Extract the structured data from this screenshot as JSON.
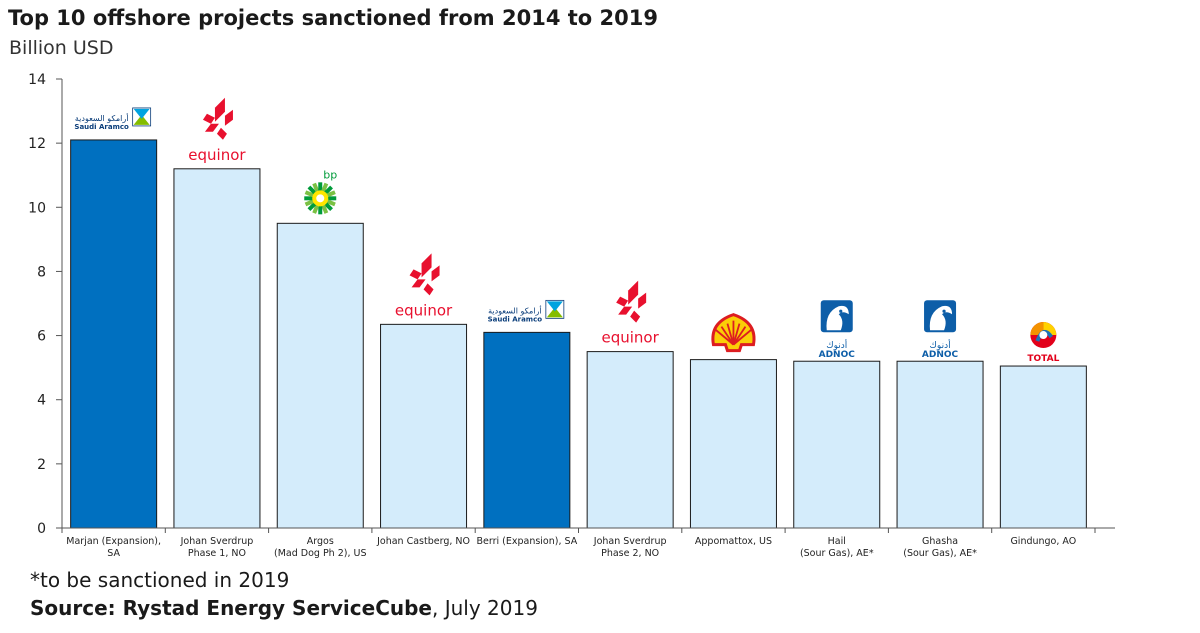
{
  "chart_data": {
    "type": "bar",
    "title": "Top 10 offshore projects sanctioned from 2014 to 2019",
    "ylabel": "Billion USD",
    "xlabel": "",
    "ylim": [
      0,
      14
    ],
    "yticks": [
      0,
      2,
      4,
      6,
      8,
      10,
      12,
      14
    ],
    "grid": false,
    "categories": [
      [
        "Marjan (Expansion),",
        "SA"
      ],
      [
        "Johan Sverdrup",
        "Phase 1, NO"
      ],
      [
        "Argos",
        "(Mad Dog Ph 2), US"
      ],
      [
        "Johan Castberg, NO"
      ],
      [
        "Berri (Expansion), SA"
      ],
      [
        "Johan Sverdrup",
        "Phase 2, NO"
      ],
      [
        "Appomattox, US"
      ],
      [
        "Hail",
        "(Sour Gas), AE*"
      ],
      [
        "Ghasha",
        "(Sour Gas), AE*"
      ],
      [
        "Gindungo, AO"
      ]
    ],
    "values": [
      12.1,
      11.2,
      9.5,
      6.35,
      6.1,
      5.5,
      5.25,
      5.2,
      5.2,
      5.05
    ],
    "operators": [
      "Saudi Aramco",
      "equinor",
      "bp",
      "equinor",
      "Saudi Aramco",
      "equinor",
      "Shell",
      "ADNOC",
      "ADNOC",
      "TOTAL"
    ],
    "operator_logos": [
      "aramco-logo",
      "equinor-logo",
      "bp-logo",
      "equinor-logo",
      "aramco-logo",
      "equinor-logo",
      "shell-logo",
      "adnoc-logo",
      "adnoc-logo",
      "total-logo"
    ],
    "highlight": [
      true,
      false,
      false,
      false,
      true,
      false,
      false,
      false,
      false,
      false
    ]
  },
  "colors": {
    "highlight_bar": "#0070c0",
    "regular_bar": "#d4ecfb",
    "bar_outline": "#1a1a1a",
    "equinor": "#e8102e",
    "aramco": "#00a3e0",
    "adnoc": "#0d5ea8",
    "shell_red": "#dd1d21",
    "shell_yellow": "#fbce07",
    "bp_green": "#009b3a",
    "bp_yellow": "#ffe600"
  },
  "logo_text": {
    "equinor": "equinor",
    "bp": "bp",
    "aramco_latin": "Saudi Aramco",
    "aramco_arabic": "أرامكو السعودية",
    "adnoc_latin": "ADNOC",
    "adnoc_arabic": "أدنوك",
    "total": "TOTAL"
  },
  "footnote": "*to be sanctioned in 2019",
  "source_bold": "Source: Rystad Energy ServiceCube",
  "source_rest": ", July 2019"
}
